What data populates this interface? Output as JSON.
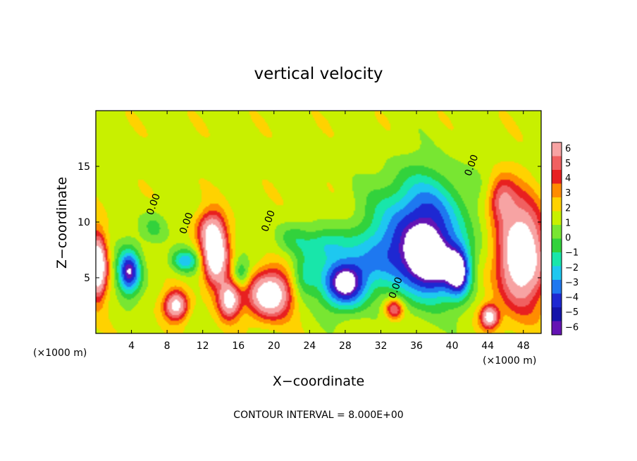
{
  "chart_data": {
    "type": "heatmap",
    "title": "vertical velocity",
    "xlabel": "X−coordinate",
    "ylabel": "Z−coordinate",
    "x_unit_left": "(×1000 m)",
    "x_unit_right": "(×1000 m)",
    "footer": "CONTOUR INTERVAL = 8.000E+00",
    "xlim": [
      0,
      50
    ],
    "ylim": [
      0,
      20
    ],
    "x_ticks": [
      "4",
      "8",
      "12",
      "16",
      "20",
      "24",
      "28",
      "32",
      "36",
      "40",
      "44",
      "48"
    ],
    "x_tick_values": [
      4,
      8,
      12,
      16,
      20,
      24,
      28,
      32,
      36,
      40,
      44,
      48
    ],
    "y_ticks": [
      "5",
      "10",
      "15"
    ],
    "y_tick_values": [
      5,
      10,
      15
    ],
    "contour_labels": [
      {
        "text": "0.00",
        "x": 6.8,
        "y": 11.5
      },
      {
        "text": "0.00",
        "x": 10.5,
        "y": 9.8
      },
      {
        "text": "0.00",
        "x": 19.7,
        "y": 10.0
      },
      {
        "text": "0.00",
        "x": 34.0,
        "y": 4.0
      },
      {
        "text": "0.00",
        "x": 42.5,
        "y": 15.0
      }
    ],
    "colorbar": {
      "labels": [
        "6",
        "5",
        "4",
        "3",
        "2",
        "1",
        "0",
        "−1",
        "−2",
        "−3",
        "−4",
        "−5",
        "−6"
      ],
      "colors": [
        "#f7a3a3",
        "#f06060",
        "#e82020",
        "#ff8c00",
        "#ffd200",
        "#c8f000",
        "#78e632",
        "#32d23c",
        "#18e6aa",
        "#1ec8f0",
        "#1e78f0",
        "#1e28d2",
        "#1414aa",
        "#6414b4"
      ]
    },
    "features": [
      {
        "x": 0.2,
        "y": 6.0,
        "sx": 1.0,
        "sy": 2.8,
        "a": 9
      },
      {
        "x": 3.7,
        "y": 5.5,
        "sx": 1.3,
        "sy": 2.0,
        "a": -7
      },
      {
        "x": 9.0,
        "y": 2.5,
        "sx": 1.3,
        "sy": 1.3,
        "a": 7
      },
      {
        "x": 10.0,
        "y": 6.5,
        "sx": 1.6,
        "sy": 1.0,
        "a": -4
      },
      {
        "x": 13.4,
        "y": 7.2,
        "sx": 1.4,
        "sy": 2.8,
        "a": 9
      },
      {
        "x": 15.0,
        "y": 3.0,
        "sx": 1.2,
        "sy": 1.6,
        "a": 7
      },
      {
        "x": 16.3,
        "y": 5.3,
        "sx": 1.0,
        "sy": 1.3,
        "a": -3
      },
      {
        "x": 19.5,
        "y": 3.5,
        "sx": 2.4,
        "sy": 2.1,
        "a": 8.5
      },
      {
        "x": 23.3,
        "y": 5.0,
        "sx": 1.5,
        "sy": 2.0,
        "a": -3
      },
      {
        "x": 28.0,
        "y": 4.5,
        "sx": 2.6,
        "sy": 2.3,
        "a": -8
      },
      {
        "x": 32.0,
        "y": 7.0,
        "sx": 4.0,
        "sy": 2.8,
        "a": -3
      },
      {
        "x": 33.5,
        "y": 2.2,
        "sx": 1.0,
        "sy": 0.9,
        "a": 5
      },
      {
        "x": 37.5,
        "y": 6.0,
        "sx": 3.5,
        "sy": 3.2,
        "a": -7.5
      },
      {
        "x": 36.5,
        "y": 10.5,
        "sx": 5.0,
        "sy": 4.0,
        "a": -5.5
      },
      {
        "x": 40.8,
        "y": 5.5,
        "sx": 1.3,
        "sy": 2.2,
        "a": -6
      },
      {
        "x": 44.2,
        "y": 1.5,
        "sx": 1.0,
        "sy": 1.0,
        "a": 7
      },
      {
        "x": 47.7,
        "y": 7.0,
        "sx": 2.6,
        "sy": 4.6,
        "a": 9
      },
      {
        "x": 45.5,
        "y": 12.0,
        "sx": 1.5,
        "sy": 2.0,
        "a": 4
      },
      {
        "x": 6.5,
        "y": 9.5,
        "sx": 1.5,
        "sy": 1.5,
        "a": -2
      },
      {
        "x": 22.0,
        "y": 8.5,
        "sx": 2.0,
        "sy": 1.5,
        "a": -2
      },
      {
        "x": 26.0,
        "y": 8.0,
        "sx": 2.5,
        "sy": 1.5,
        "a": -3
      },
      {
        "x": 12.5,
        "y": 9.5,
        "sx": 1.5,
        "sy": 1.5,
        "a": 3
      }
    ]
  }
}
